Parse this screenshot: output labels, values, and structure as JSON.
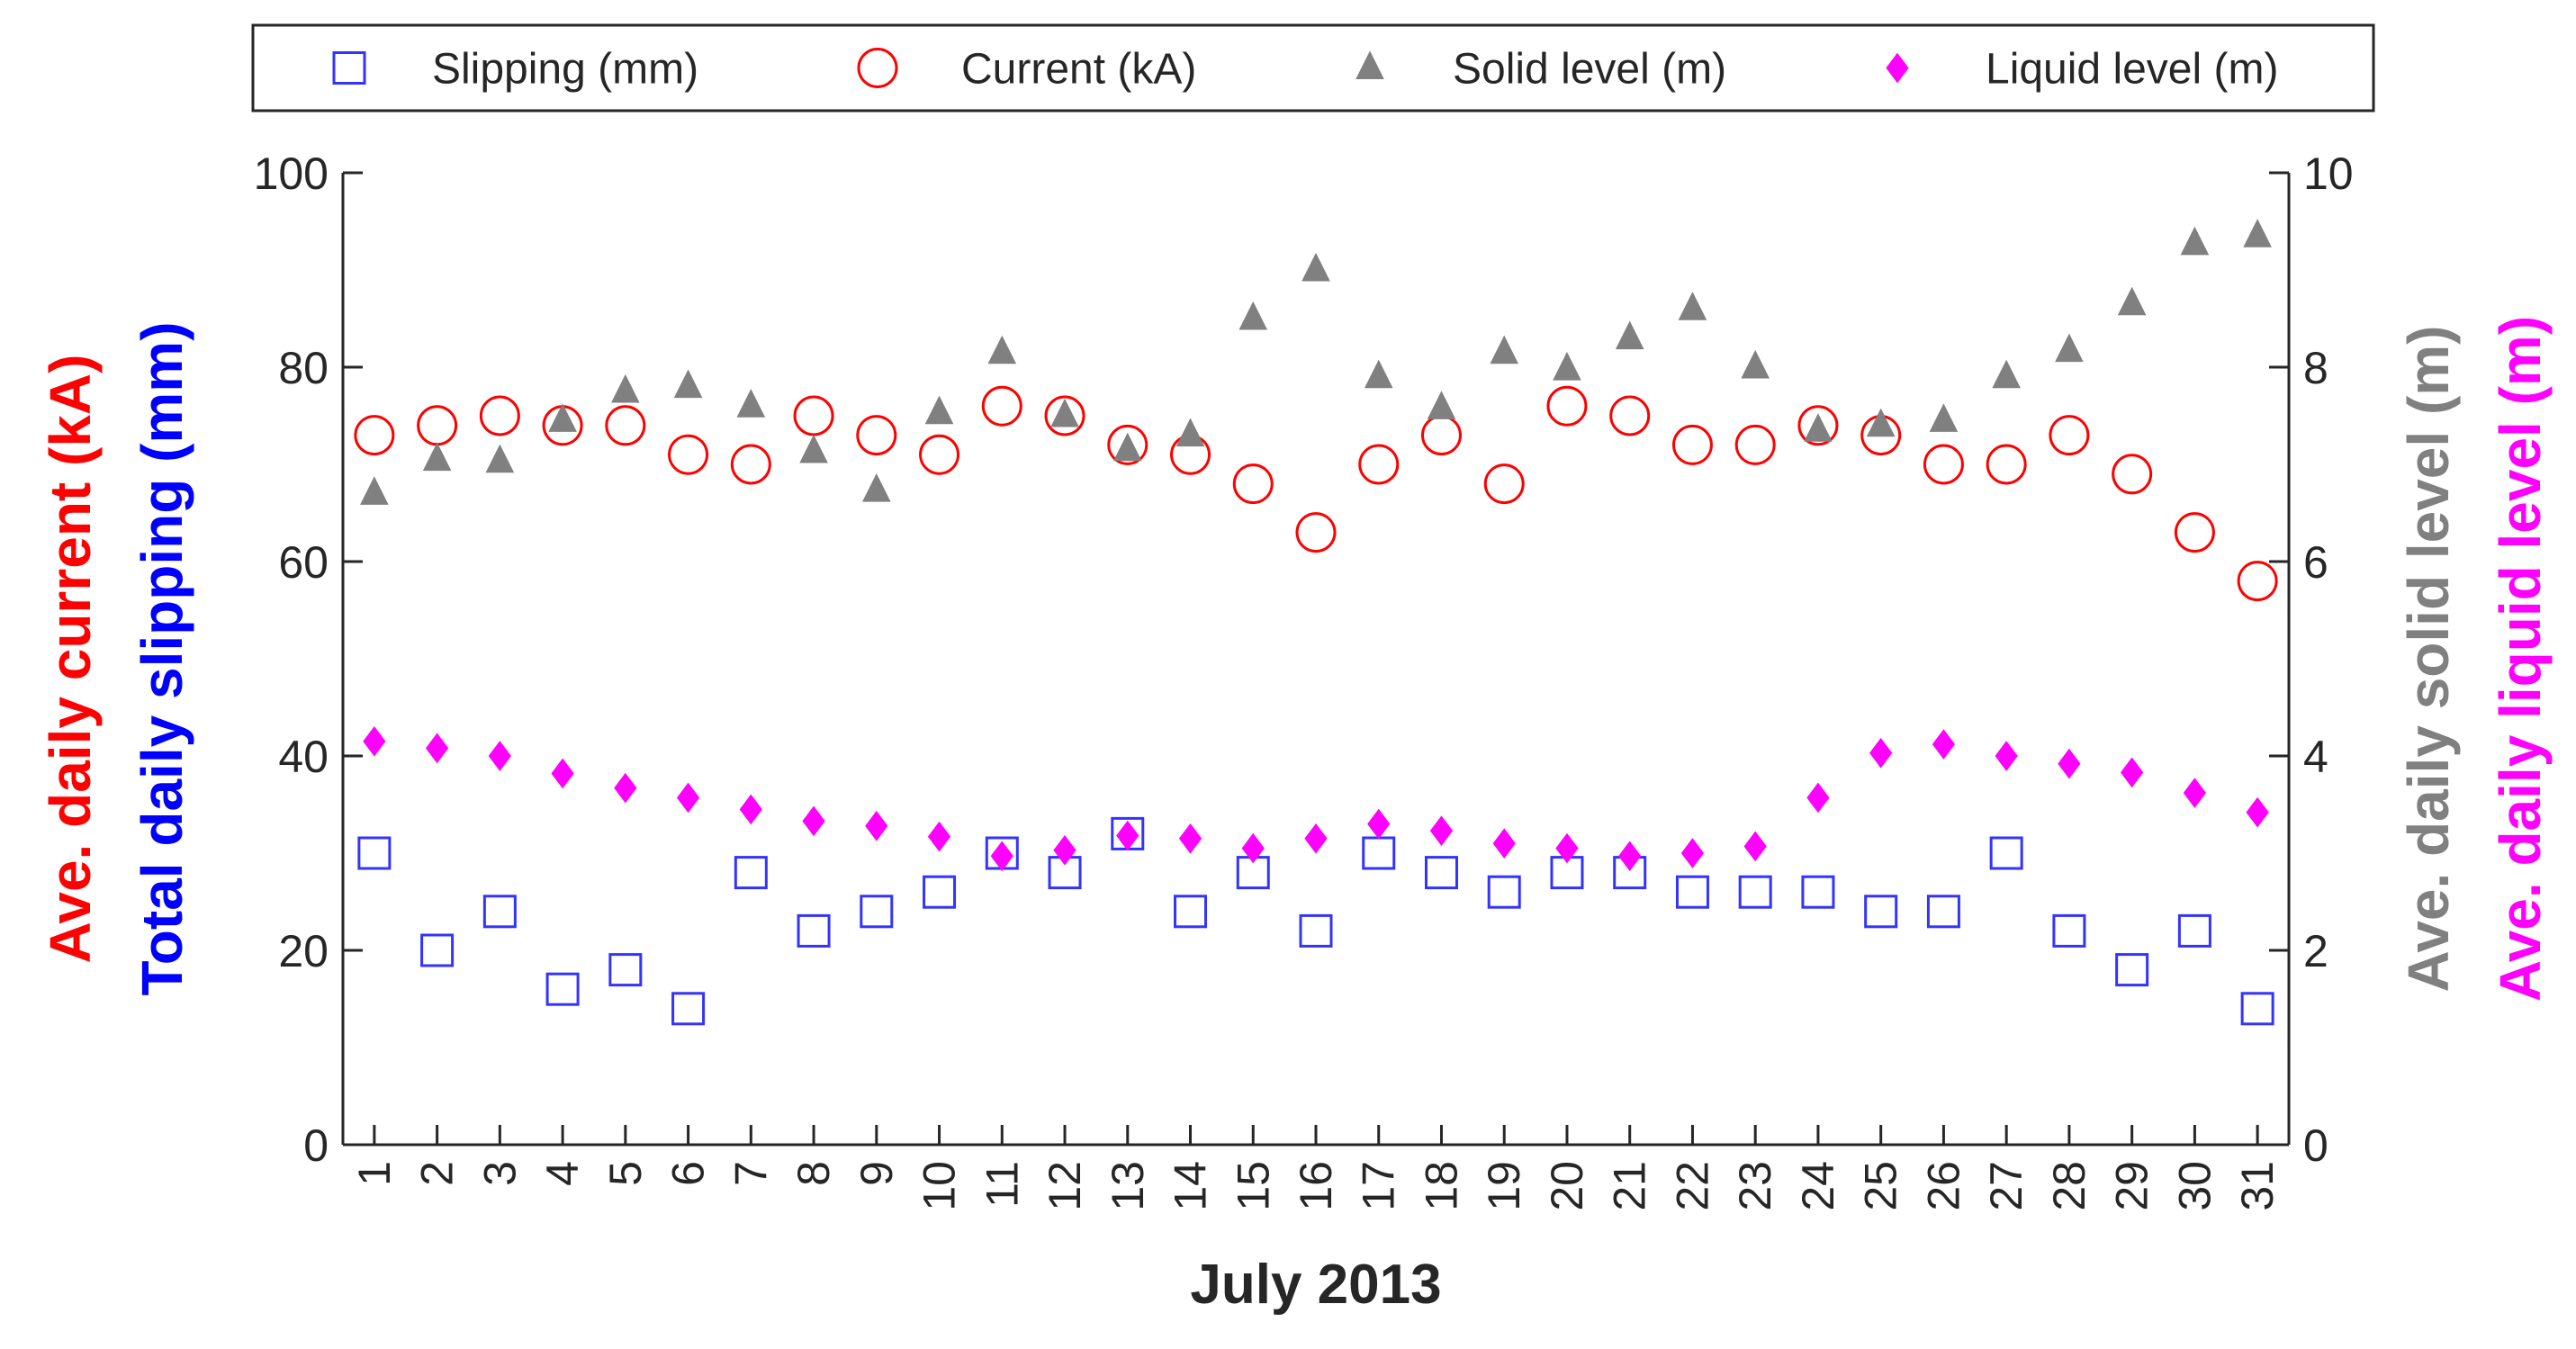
{
  "chart_data": {
    "type": "scatter",
    "xlabel": "July 2013",
    "x": [
      1,
      2,
      3,
      4,
      5,
      6,
      7,
      8,
      9,
      10,
      11,
      12,
      13,
      14,
      15,
      16,
      17,
      18,
      19,
      20,
      21,
      22,
      23,
      24,
      25,
      26,
      27,
      28,
      29,
      30,
      31
    ],
    "xlim": [
      0.5,
      31.5
    ],
    "left_axis": {
      "label_top": "Total daily slipping (mm)",
      "label_bottom": "Ave. daily current (kA)",
      "label_top_color": "#0000FF",
      "label_bottom_color": "#FF0000",
      "ylim": [
        0,
        100
      ],
      "ticks": [
        0,
        20,
        40,
        60,
        80,
        100
      ]
    },
    "right_axis": {
      "label_top": "Ave. daily liquid level (m)",
      "label_bottom": "Ave. daily solid level (m)",
      "label_top_color": "#FF00FF",
      "label_bottom_color": "#808080",
      "ylim": [
        0,
        10
      ],
      "ticks": [
        0,
        2,
        4,
        6,
        8,
        10
      ]
    },
    "series": [
      {
        "name": "Slipping (mm)",
        "axis": "left",
        "marker": "square",
        "color": "#3333FF",
        "filled": false,
        "values": [
          30,
          20,
          24,
          16,
          18,
          14,
          28,
          22,
          24,
          26,
          30,
          28,
          32,
          24,
          28,
          22,
          30,
          28,
          26,
          28,
          28,
          26,
          26,
          26,
          24,
          24,
          30,
          22,
          18,
          22,
          14
        ]
      },
      {
        "name": "Current (kA)",
        "axis": "left",
        "marker": "circle",
        "color": "#FF0000",
        "filled": false,
        "values": [
          73,
          74,
          75,
          74,
          74,
          71,
          70,
          75,
          73,
          71,
          76,
          75,
          72,
          71,
          68,
          63,
          70,
          73,
          68,
          76,
          75,
          72,
          72,
          74,
          73,
          70,
          70,
          73,
          69,
          63,
          58
        ]
      },
      {
        "name": "Solid level (m)",
        "axis": "right",
        "marker": "triangle",
        "color": "#808080",
        "filled": true,
        "values": [
          6.7,
          7.05,
          7.03,
          7.45,
          7.75,
          7.8,
          7.6,
          7.13,
          6.73,
          7.53,
          8.15,
          7.5,
          7.15,
          7.3,
          8.5,
          9.0,
          7.9,
          7.58,
          8.15,
          7.98,
          8.3,
          8.6,
          8.0,
          7.35,
          7.4,
          7.45,
          7.9,
          8.17,
          8.65,
          9.27,
          9.35
        ]
      },
      {
        "name": "Liquid level (m)",
        "axis": "right",
        "marker": "diamond",
        "color": "#FF00FF",
        "filled": true,
        "values": [
          4.15,
          4.08,
          4.0,
          3.82,
          3.67,
          3.57,
          3.45,
          3.33,
          3.28,
          3.17,
          2.97,
          3.03,
          3.18,
          3.15,
          3.05,
          3.15,
          3.3,
          3.23,
          3.1,
          3.05,
          2.97,
          3.0,
          3.07,
          3.57,
          4.03,
          4.12,
          4.0,
          3.92,
          3.83,
          3.62,
          3.42
        ]
      }
    ],
    "legend": {
      "placement": "top-center",
      "entries": [
        "Slipping (mm)",
        "Current (kA)",
        "Solid level (m)",
        "Liquid level (m)"
      ]
    }
  }
}
